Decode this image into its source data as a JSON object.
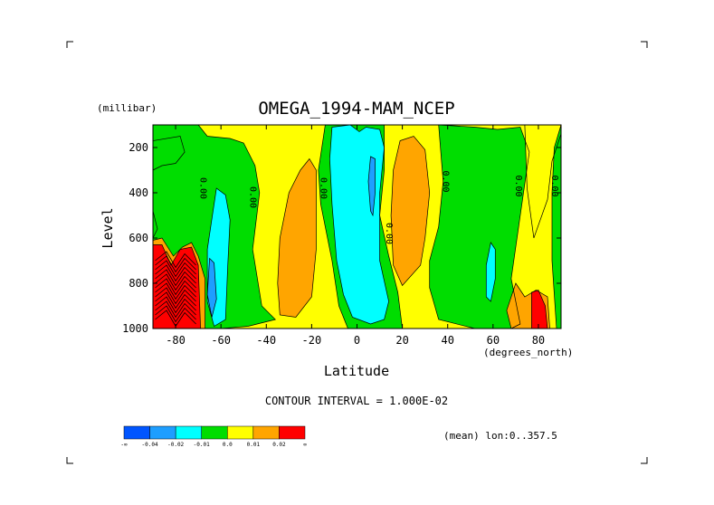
{
  "chart_data": {
    "type": "contour",
    "title": "OMEGA_1994-MAM_NCEP",
    "xlabel": "Latitude",
    "x_units": "(degrees_north)",
    "ylabel": "Level",
    "y_units": "(millibar)",
    "xlim": [
      -90,
      90
    ],
    "ylim": [
      1000,
      100
    ],
    "x_ticks": [
      "-80",
      "-60",
      "-40",
      "-20",
      "0",
      "20",
      "40",
      "60",
      "80"
    ],
    "x_tick_values": [
      -80,
      -60,
      -40,
      -20,
      0,
      20,
      40,
      60,
      80
    ],
    "y_ticks": [
      "200",
      "400",
      "600",
      "800",
      "1000"
    ],
    "y_tick_values": [
      200,
      400,
      600,
      800,
      1000
    ],
    "contour_interval_text": "CONTOUR INTERVAL = 1.000E-02",
    "averaging_text": "(mean) lon:0..357.5",
    "contour_label": "0.00",
    "zero_contour_label_positions": [
      {
        "lat": -69,
        "level": 380
      },
      {
        "lat": -47,
        "level": 420
      },
      {
        "lat": -16,
        "level": 380
      },
      {
        "lat": 13,
        "level": 580
      },
      {
        "lat": 38,
        "level": 350
      },
      {
        "lat": 70,
        "level": 370
      },
      {
        "lat": 86,
        "level": 370
      }
    ],
    "colorbar": {
      "labels": [
        "-∞",
        "-0.04",
        "-0.02",
        "-0.01",
        "0.0",
        "0.01",
        "0.02",
        "∞"
      ],
      "colors": [
        "#0055ff",
        "#1e9eff",
        "#00ffff",
        "#00dd00",
        "#ffff00",
        "#ffa500",
        "#ff0000"
      ]
    },
    "regions": [
      {
        "name": "yellow-background",
        "class": "0.0 to 0.01",
        "color": "#ffff00",
        "points": [
          [
            -90,
            100
          ],
          [
            90,
            100
          ],
          [
            90,
            1000
          ],
          [
            -90,
            1000
          ]
        ]
      },
      {
        "name": "green-band-south",
        "class": "-0.01 to 0.0",
        "color": "#00dd00",
        "points": [
          [
            -90,
            100
          ],
          [
            -70,
            100
          ],
          [
            -66,
            150
          ],
          [
            -56,
            160
          ],
          [
            -50,
            180
          ],
          [
            -45,
            280
          ],
          [
            -43,
            400
          ],
          [
            -46,
            650
          ],
          [
            -42,
            900
          ],
          [
            -36,
            960
          ],
          [
            -48,
            990
          ],
          [
            -60,
            1000
          ],
          [
            -90,
            1000
          ]
        ]
      },
      {
        "name": "green-band-tropics",
        "class": "-0.01 to 0.0",
        "color": "#00dd00",
        "points": [
          [
            -14,
            100
          ],
          [
            12,
            100
          ],
          [
            12,
            300
          ],
          [
            10,
            500
          ],
          [
            14,
            680
          ],
          [
            18,
            840
          ],
          [
            20,
            1000
          ],
          [
            -4,
            1000
          ],
          [
            -8,
            900
          ],
          [
            -11,
            700
          ],
          [
            -16,
            450
          ],
          [
            -17,
            300
          ]
        ]
      },
      {
        "name": "green-band-north",
        "class": "-0.01 to 0.0",
        "color": "#00dd00",
        "points": [
          [
            36,
            100
          ],
          [
            52,
            110
          ],
          [
            62,
            120
          ],
          [
            72,
            110
          ],
          [
            76,
            220
          ],
          [
            72,
            500
          ],
          [
            68,
            780
          ],
          [
            72,
            980
          ],
          [
            68,
            1000
          ],
          [
            52,
            1000
          ],
          [
            36,
            960
          ],
          [
            32,
            820
          ],
          [
            32,
            700
          ],
          [
            36,
            550
          ],
          [
            38,
            350
          ]
        ]
      },
      {
        "name": "yellow-north-corner",
        "class": "0.0 to 0.01",
        "color": "#ffff00",
        "points": [
          [
            74,
            100
          ],
          [
            90,
            100
          ],
          [
            90,
            140
          ],
          [
            86,
            260
          ],
          [
            84,
            430
          ],
          [
            78,
            600
          ],
          [
            75,
            380
          ]
        ]
      },
      {
        "name": "green-north-edge",
        "class": "-0.01 to 0.0",
        "color": "#00dd00",
        "points": [
          [
            90,
            100
          ],
          [
            90,
            1000
          ],
          [
            88,
            1000
          ],
          [
            86,
            700
          ],
          [
            86,
            400
          ],
          [
            87,
            200
          ]
        ]
      },
      {
        "name": "green-southwest-edge",
        "class": "-0.01 to 0.0",
        "color": "#00dd00",
        "points": [
          [
            -90,
            170
          ],
          [
            -90,
            300
          ],
          [
            -86,
            280
          ],
          [
            -80,
            270
          ],
          [
            -76,
            220
          ],
          [
            -78,
            150
          ]
        ]
      },
      {
        "name": "cyan-equatorial",
        "class": "-0.02 to -0.01",
        "color": "#00ffff",
        "points": [
          [
            -11,
            110
          ],
          [
            -3,
            100
          ],
          [
            1,
            130
          ],
          [
            4,
            110
          ],
          [
            10,
            120
          ],
          [
            12,
            200
          ],
          [
            10,
            400
          ],
          [
            10,
            700
          ],
          [
            14,
            880
          ],
          [
            12,
            960
          ],
          [
            6,
            980
          ],
          [
            -2,
            950
          ],
          [
            -6,
            850
          ],
          [
            -9,
            700
          ],
          [
            -11,
            450
          ],
          [
            -12,
            250
          ]
        ]
      },
      {
        "name": "cyan-south",
        "class": "-0.02 to -0.01",
        "color": "#00ffff",
        "points": [
          [
            -62,
            380
          ],
          [
            -58,
            410
          ],
          [
            -56,
            520
          ],
          [
            -57,
            720
          ],
          [
            -58,
            960
          ],
          [
            -63,
            990
          ],
          [
            -66,
            880
          ],
          [
            -66,
            650
          ]
        ]
      },
      {
        "name": "cyan-north",
        "class": "-0.02 to -0.01",
        "color": "#00ffff",
        "points": [
          [
            59,
            620
          ],
          [
            61,
            650
          ],
          [
            61,
            780
          ],
          [
            59,
            880
          ],
          [
            57,
            860
          ],
          [
            57,
            720
          ]
        ]
      },
      {
        "name": "blue-equatorial",
        "class": "-0.04 to -0.02",
        "color": "#1e9eff",
        "points": [
          [
            6,
            240
          ],
          [
            8,
            250
          ],
          [
            8,
            400
          ],
          [
            7,
            500
          ],
          [
            6,
            480
          ],
          [
            5,
            350
          ]
        ]
      },
      {
        "name": "blue-south",
        "class": "-0.04 to -0.02",
        "color": "#1e9eff",
        "points": [
          [
            -65,
            690
          ],
          [
            -63,
            710
          ],
          [
            -62,
            870
          ],
          [
            -64,
            950
          ],
          [
            -66,
            850
          ]
        ]
      },
      {
        "name": "orange-south",
        "class": "0.01 to 0.02",
        "color": "#ffa500",
        "points": [
          [
            -25,
            300
          ],
          [
            -21,
            250
          ],
          [
            -18,
            300
          ],
          [
            -18,
            650
          ],
          [
            -20,
            860
          ],
          [
            -27,
            950
          ],
          [
            -34,
            940
          ],
          [
            -35,
            800
          ],
          [
            -34,
            600
          ],
          [
            -30,
            400
          ]
        ]
      },
      {
        "name": "orange-north",
        "class": "0.01 to 0.02",
        "color": "#ffa500",
        "points": [
          [
            19,
            170
          ],
          [
            25,
            150
          ],
          [
            30,
            210
          ],
          [
            32,
            400
          ],
          [
            30,
            600
          ],
          [
            28,
            720
          ],
          [
            20,
            810
          ],
          [
            16,
            720
          ],
          [
            15,
            500
          ],
          [
            16,
            300
          ]
        ]
      },
      {
        "name": "orange-north-surface",
        "class": "0.01 to 0.02",
        "color": "#ffa500",
        "points": [
          [
            70,
            800
          ],
          [
            74,
            860
          ],
          [
            79,
            830
          ],
          [
            84,
            860
          ],
          [
            85,
            1000
          ],
          [
            68,
            1000
          ],
          [
            66,
            920
          ]
        ]
      },
      {
        "name": "orange-southwest",
        "class": "0.01 to 0.02",
        "color": "#ffa500",
        "points": [
          [
            -90,
            610
          ],
          [
            -86,
            600
          ],
          [
            -81,
            680
          ],
          [
            -77,
            640
          ],
          [
            -73,
            620
          ],
          [
            -70,
            680
          ],
          [
            -67,
            780
          ],
          [
            -67,
            1000
          ],
          [
            -90,
            1000
          ]
        ]
      },
      {
        "name": "red-southwest",
        "class": "> 0.02",
        "color": "#ff0000",
        "points": [
          [
            -90,
            630
          ],
          [
            -86,
            630
          ],
          [
            -82,
            720
          ],
          [
            -78,
            650
          ],
          [
            -73,
            640
          ],
          [
            -70,
            720
          ],
          [
            -69,
            1000
          ],
          [
            -90,
            1000
          ]
        ]
      },
      {
        "name": "red-north-surface",
        "class": "> 0.02",
        "color": "#ff0000",
        "points": [
          [
            77,
            840
          ],
          [
            80,
            830
          ],
          [
            83,
            900
          ],
          [
            84,
            1000
          ],
          [
            77,
            1000
          ]
        ]
      },
      {
        "name": "green-south-pole-corner",
        "class": "-0.01 to 0.0",
        "color": "#00dd00",
        "points": [
          [
            -90,
            480
          ],
          [
            -88,
            560
          ],
          [
            -90,
            600
          ]
        ]
      }
    ]
  }
}
